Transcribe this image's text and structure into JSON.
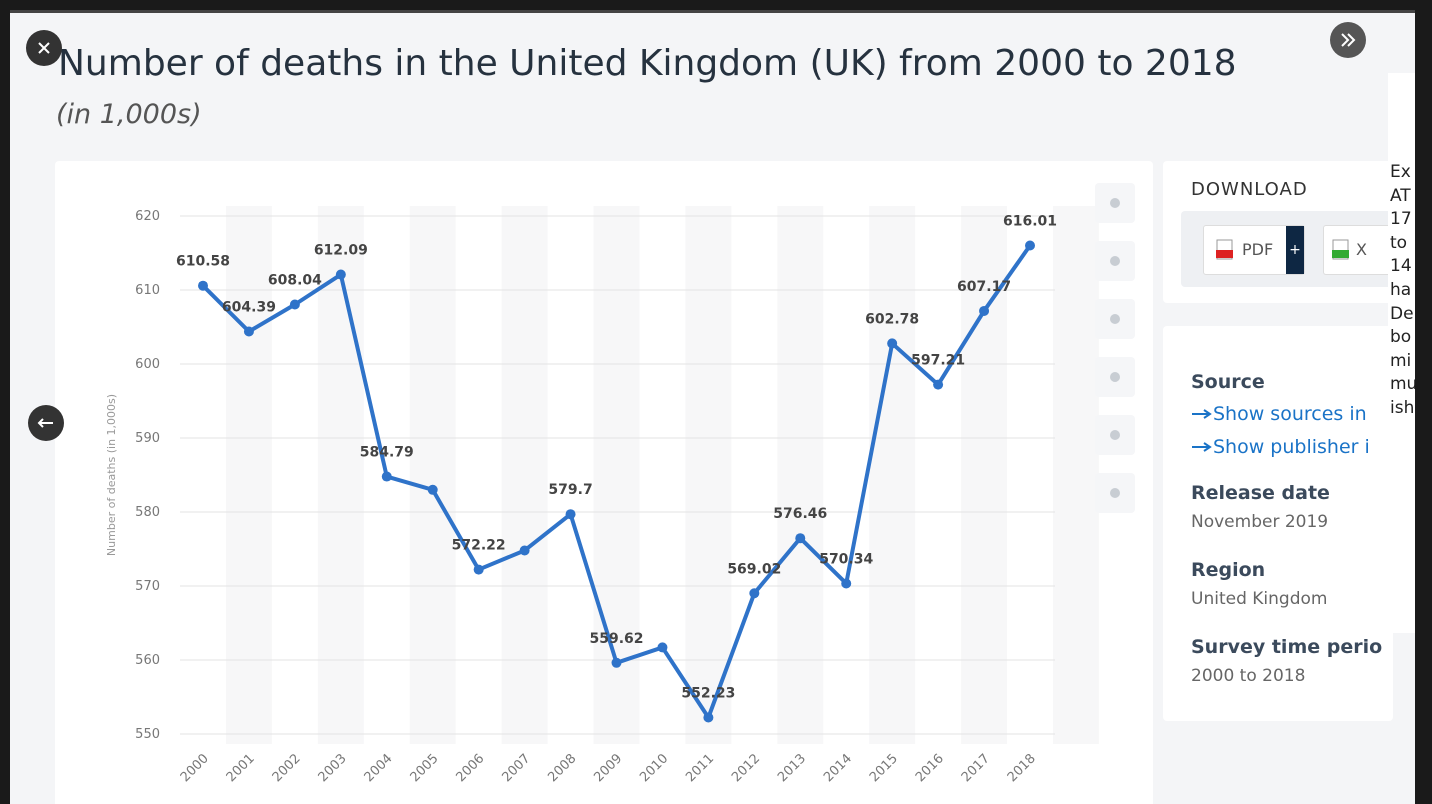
{
  "header": {
    "title": "Number of deaths in the United Kingdom (UK) from 2000 to 2018",
    "subtitle": "(in 1,000s)"
  },
  "chart_data": {
    "type": "line",
    "categories": [
      "2000",
      "2001",
      "2002",
      "2003",
      "2004",
      "2005",
      "2006",
      "2007",
      "2008",
      "2009",
      "2010",
      "2011",
      "2012",
      "2013",
      "2014",
      "2015",
      "2016",
      "2017",
      "2018"
    ],
    "values": [
      610.58,
      604.39,
      608.04,
      612.09,
      584.79,
      583.0,
      572.22,
      574.8,
      579.7,
      559.62,
      561.7,
      552.23,
      569.02,
      576.46,
      570.34,
      602.78,
      597.21,
      607.17,
      616.01
    ],
    "value_labels": [
      "610.58",
      "604.39",
      "608.04",
      "612.09",
      "584.79",
      null,
      "572.22",
      null,
      "579.7",
      "559.62",
      null,
      "552.23",
      "569.02",
      "576.46",
      "570.34",
      "602.78",
      "597.21",
      "607.17",
      "616.01"
    ],
    "color": "#2f73c9",
    "y_label": "Number of deaths (in 1,000s)",
    "ylim": [
      550,
      620
    ],
    "yticks": [
      550,
      560,
      570,
      580,
      590,
      600,
      610,
      620
    ],
    "grid": true
  },
  "sidebar": {
    "download_heading": "DOWNLOAD",
    "buttons": [
      "PDF",
      "X"
    ],
    "source_heading": "Source",
    "links": [
      "Show sources in",
      "Show publisher i"
    ],
    "details": [
      {
        "label": "Release date",
        "value": "November 2019"
      },
      {
        "label": "Region",
        "value": "United Kingdom"
      },
      {
        "label": "Survey time perio",
        "value": "2000 to 2018"
      }
    ]
  },
  "side_strip": {
    "lines": [
      "Ex",
      "AT",
      "17",
      "to",
      "14",
      "ha",
      "De",
      "bo",
      "mi",
      "mu",
      "ish"
    ]
  }
}
